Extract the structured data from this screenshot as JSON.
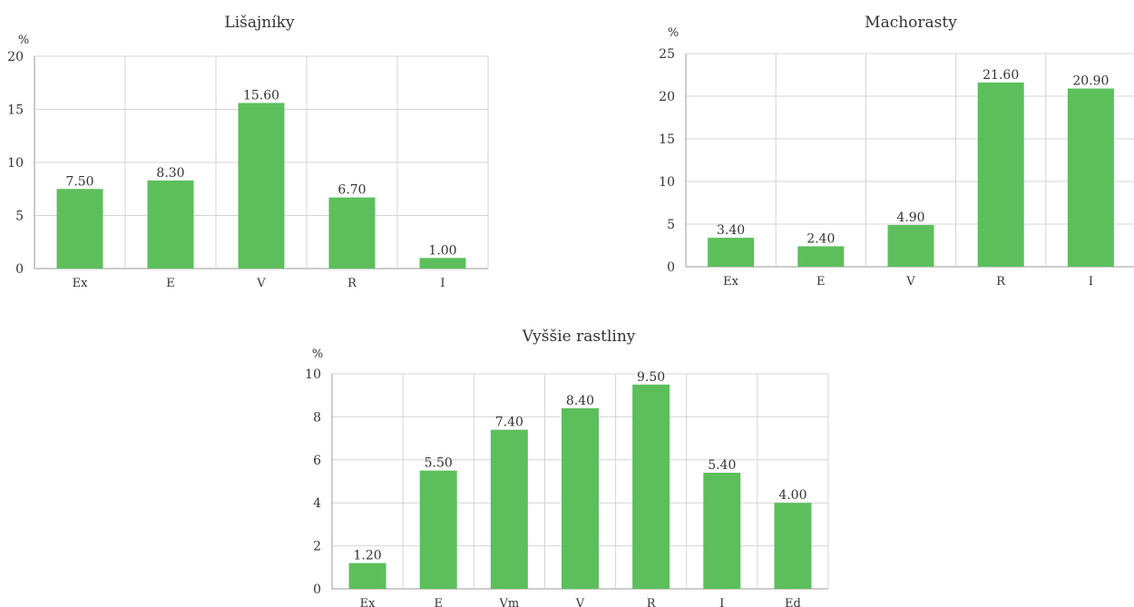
{
  "colors": {
    "bar": "#5cbf5c",
    "grid": "#d4d4d4",
    "axis": "#999999",
    "text": "#333333"
  },
  "unit_label": "%",
  "chart_data": [
    {
      "type": "bar",
      "title": "Lišajníky",
      "ylabel": "%",
      "ylim": [
        0,
        20
      ],
      "yticks": [
        0,
        5,
        10,
        15,
        20
      ],
      "grid": true,
      "categories": [
        "Ex",
        "E",
        "V",
        "R",
        "I"
      ],
      "values": [
        7.5,
        8.3,
        15.6,
        6.7,
        1.0
      ],
      "data_labels": [
        "7.50",
        "8.30",
        "15.60",
        "6.70",
        "1.00"
      ]
    },
    {
      "type": "bar",
      "title": "Machorasty",
      "ylabel": "%",
      "ylim": [
        0,
        25
      ],
      "yticks": [
        0,
        5,
        10,
        15,
        20,
        25
      ],
      "grid": true,
      "categories": [
        "Ex",
        "E",
        "V",
        "R",
        "I"
      ],
      "values": [
        3.4,
        2.4,
        4.9,
        21.6,
        20.9
      ],
      "data_labels": [
        "3.40",
        "2.40",
        "4.90",
        "21.60",
        "20.90"
      ]
    },
    {
      "type": "bar",
      "title": "Vyššie rastliny",
      "ylabel": "%",
      "ylim": [
        0,
        10
      ],
      "yticks": [
        0,
        2,
        4,
        6,
        8,
        10
      ],
      "grid": true,
      "categories": [
        "Ex",
        "E",
        "Vm",
        "V",
        "R",
        "I",
        "Ed"
      ],
      "values": [
        1.2,
        5.5,
        7.4,
        8.4,
        9.5,
        5.4,
        4.0
      ],
      "data_labels": [
        "1.20",
        "5.50",
        "7.40",
        "8.40",
        "9.50",
        "5.40",
        "4.00"
      ]
    }
  ]
}
